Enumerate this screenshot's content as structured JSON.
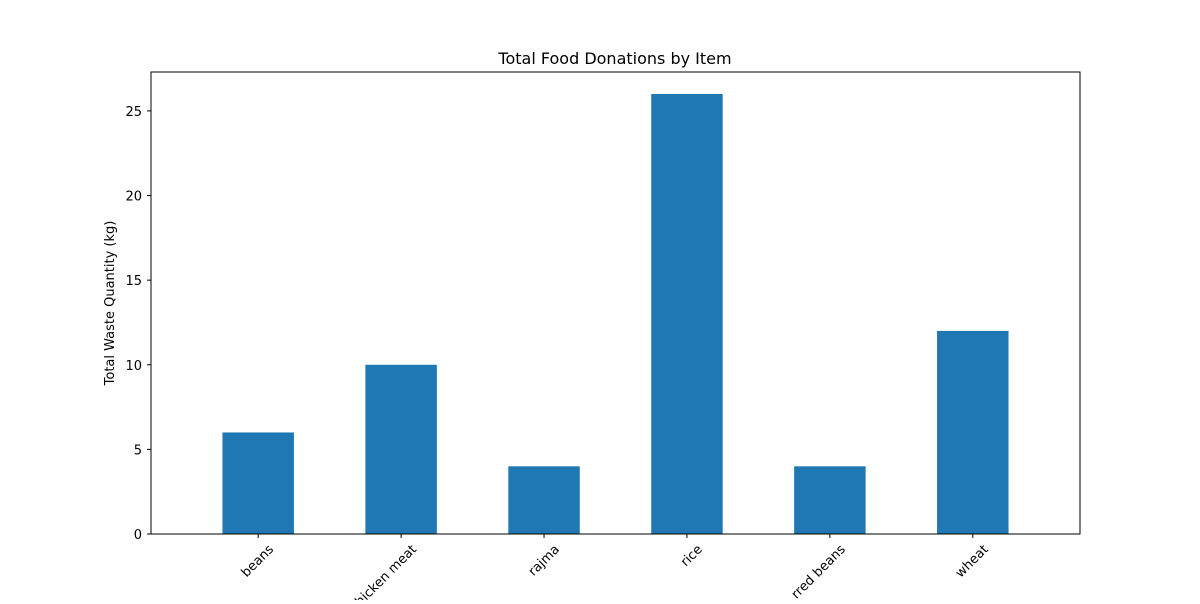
{
  "chart_data": {
    "type": "bar",
    "title": "Total Food Donations by Item",
    "xlabel": "",
    "ylabel": "Total Waste Quantity (kg)",
    "categories": [
      "beans",
      "chicken meat",
      "rajma",
      "rice",
      "rred beans",
      "wheat"
    ],
    "values": [
      6,
      10,
      4,
      26,
      4,
      12
    ],
    "ylim": [
      0,
      27.3
    ],
    "yticks": [
      0,
      5,
      10,
      15,
      20,
      25
    ],
    "bar_color": "#1f77b4",
    "grid": false,
    "legend": "none"
  }
}
